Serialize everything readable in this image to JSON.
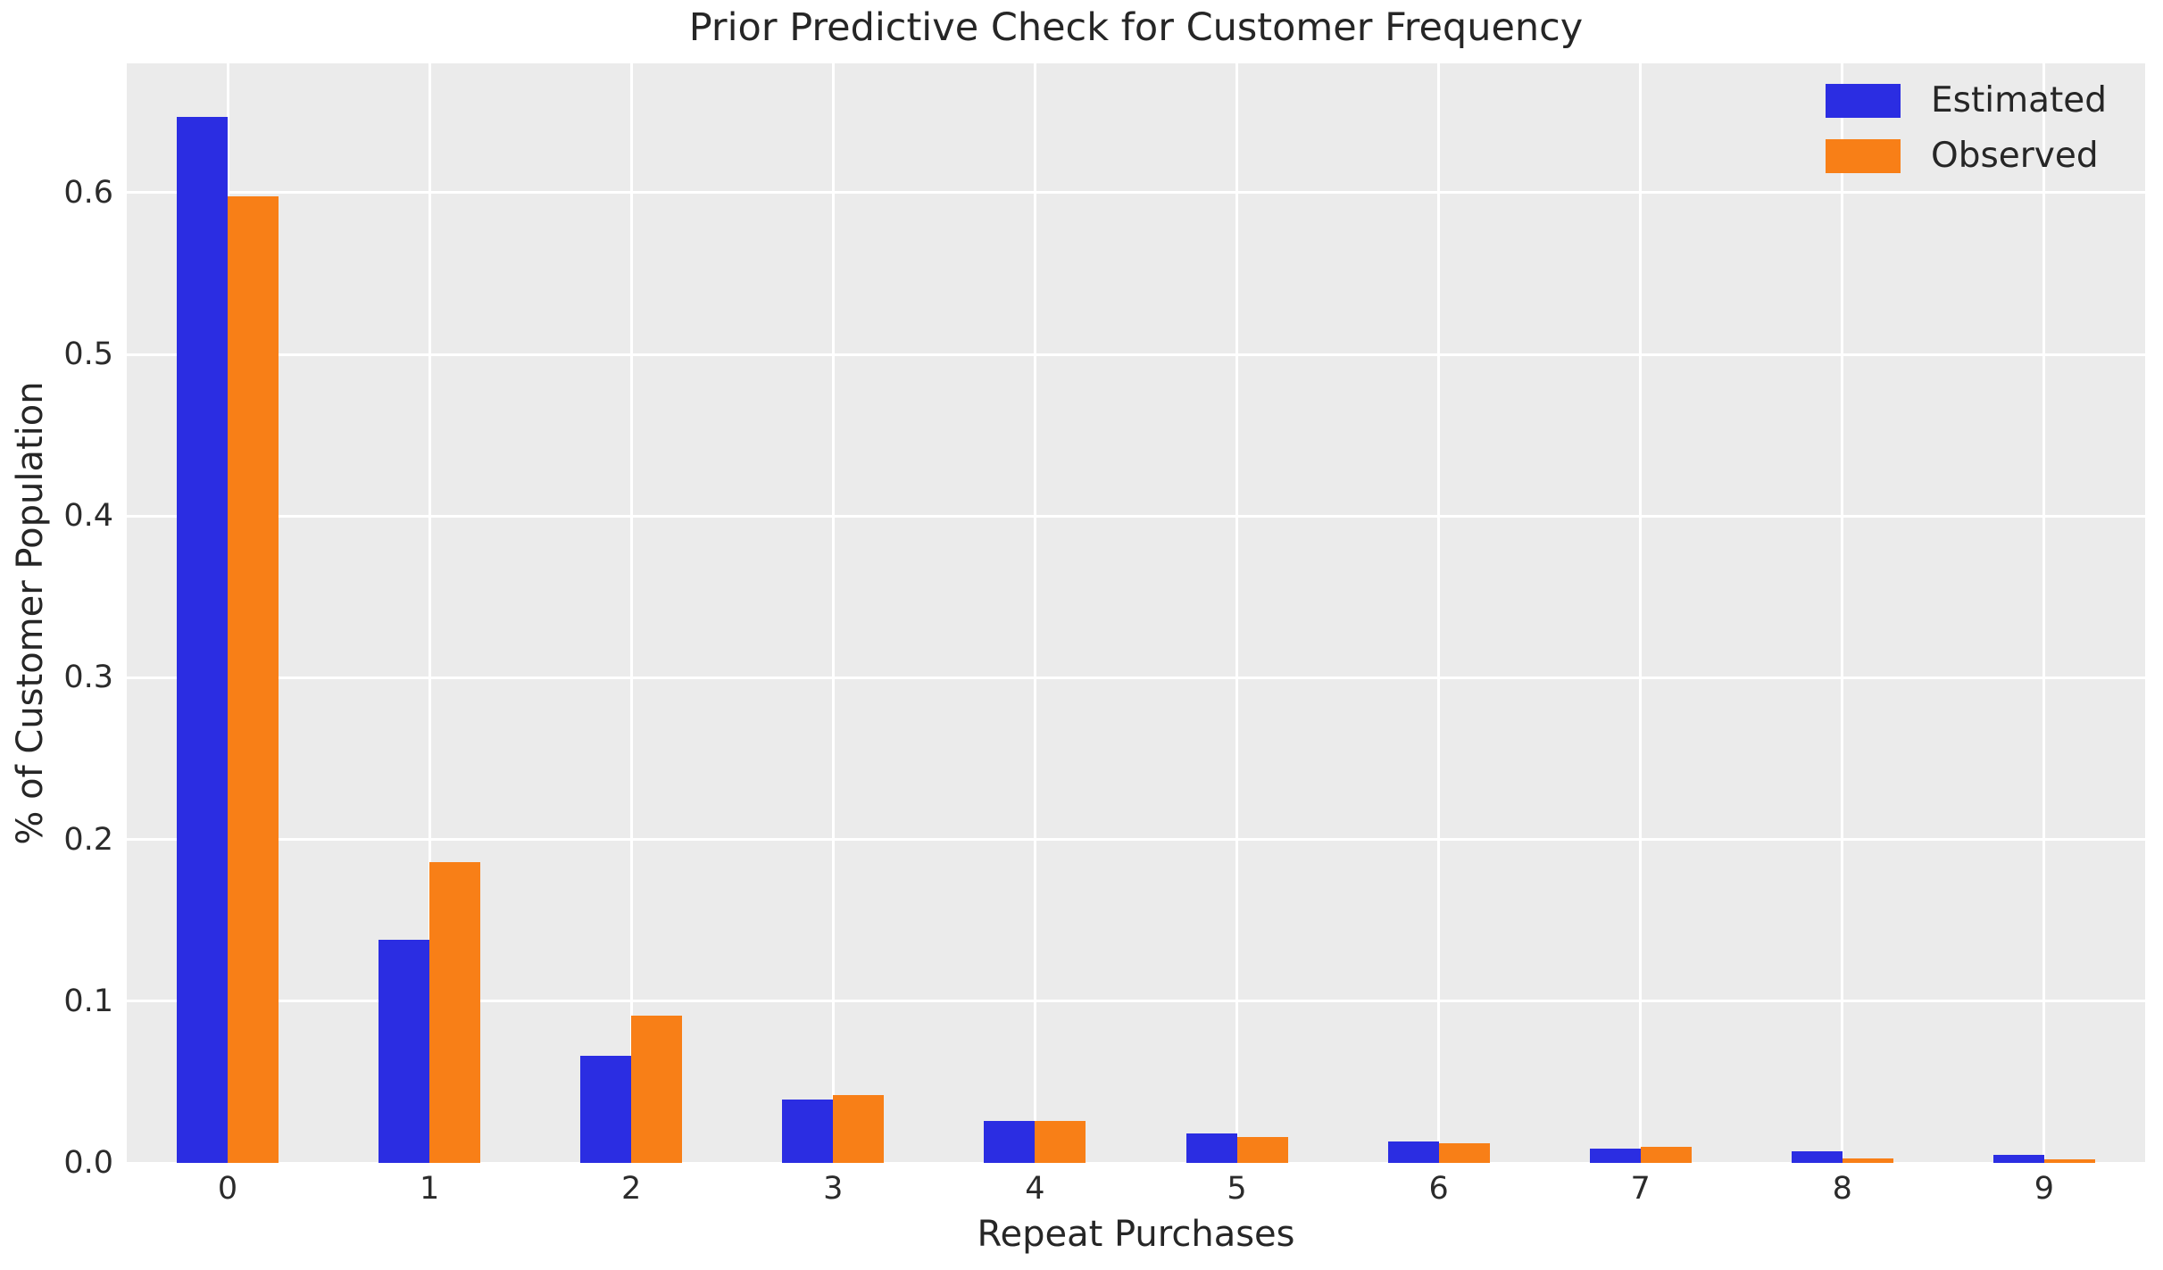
{
  "chart_data": {
    "type": "bar",
    "title": "Prior Predictive Check for Customer Frequency",
    "xlabel": "Repeat Purchases",
    "ylabel": "% of Customer Population",
    "categories": [
      "0",
      "1",
      "2",
      "3",
      "4",
      "5",
      "6",
      "7",
      "8",
      "9"
    ],
    "series": [
      {
        "name": "Estimated",
        "color": "#2b2de2",
        "values": [
          0.647,
          0.138,
          0.066,
          0.039,
          0.026,
          0.018,
          0.013,
          0.009,
          0.007,
          0.005
        ]
      },
      {
        "name": "Observed",
        "color": "#f87f17",
        "values": [
          0.598,
          0.186,
          0.091,
          0.042,
          0.026,
          0.016,
          0.012,
          0.01,
          0.0025,
          0.002
        ]
      }
    ],
    "ylim": [
      0,
      0.68
    ],
    "yticks": [
      0.0,
      0.1,
      0.2,
      0.3,
      0.4,
      0.5,
      0.6
    ],
    "ytick_labels": [
      "0.0",
      "0.1",
      "0.2",
      "0.3",
      "0.4",
      "0.5",
      "0.6"
    ],
    "grid": true,
    "legend_position": "upper right",
    "colors": {
      "plot_background": "#ebebeb",
      "gridline": "#ffffff",
      "text": "#262626"
    }
  }
}
